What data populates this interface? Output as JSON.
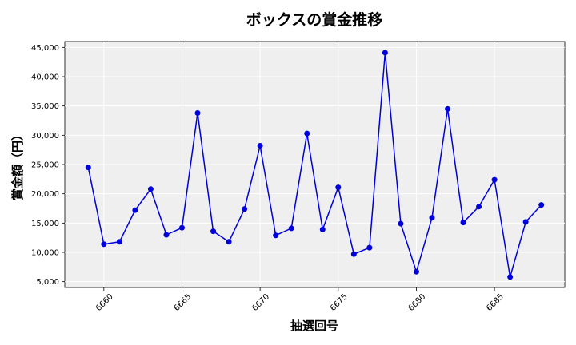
{
  "chart_data": {
    "type": "line",
    "title": "ボックスの賞金推移",
    "xlabel": "抽選回号",
    "ylabel": "賞金額（円）",
    "x": [
      6659,
      6660,
      6661,
      6662,
      6663,
      6664,
      6665,
      6666,
      6667,
      6668,
      6669,
      6670,
      6671,
      6672,
      6673,
      6674,
      6675,
      6676,
      6677,
      6678,
      6679,
      6680,
      6681,
      6682,
      6683,
      6684,
      6685,
      6686,
      6687,
      6688
    ],
    "series": [
      {
        "values": [
          24500,
          11400,
          11800,
          17200,
          20800,
          13000,
          14200,
          33800,
          13600,
          11800,
          17400,
          28200,
          12900,
          14100,
          30300,
          13900,
          21100,
          9700,
          10800,
          44100,
          14900,
          6700,
          15900,
          34500,
          15100,
          17800,
          22400,
          5800,
          15200,
          18100
        ],
        "color": "#0000dd"
      }
    ],
    "xticks": [
      6660,
      6665,
      6670,
      6675,
      6680,
      6685
    ],
    "yticks": [
      5000,
      10000,
      15000,
      20000,
      25000,
      30000,
      35000,
      40000,
      45000
    ],
    "ytick_labels": [
      "5,000",
      "10,000",
      "15,000",
      "20,000",
      "25,000",
      "30,000",
      "35,000",
      "40,000",
      "45,000"
    ],
    "xlim": [
      6657.5,
      6689.5
    ],
    "ylim": [
      4000,
      46000
    ],
    "grid": true,
    "background": "#efefef"
  }
}
